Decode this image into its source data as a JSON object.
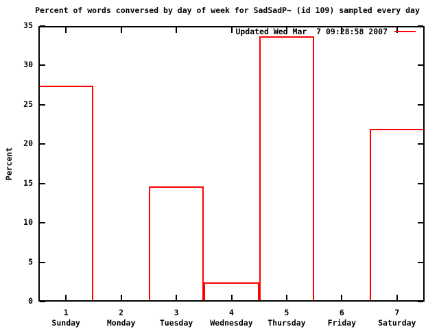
{
  "chart_data": {
    "type": "bar",
    "bar_style": "outline",
    "title": "Percent of words conversed by day of week for SadSadP~ (id 109) sampled every day",
    "ylabel": "Percent",
    "xlabel": "",
    "categories": [
      "Sunday",
      "Monday",
      "Tuesday",
      "Wednesday",
      "Thursday",
      "Friday",
      "Saturday"
    ],
    "x": [
      1,
      2,
      3,
      4,
      5,
      6,
      7
    ],
    "xtick_labels": [
      "1",
      "2",
      "3",
      "4",
      "5",
      "6",
      "7"
    ],
    "values": [
      27.4,
      0,
      14.6,
      2.4,
      33.7,
      0,
      21.9
    ],
    "ylim": [
      0,
      35
    ],
    "xlim": [
      0.5,
      7.5
    ],
    "yticks": [
      0,
      5,
      10,
      15,
      20,
      25,
      30,
      35
    ],
    "grid": false,
    "legend_label": "Updated Wed Mar  7 09:28:58 2007",
    "legend_position": "top-right-inside",
    "series_color": "#ff0000",
    "axis_color": "#000000",
    "background_color": "#ffffff"
  }
}
